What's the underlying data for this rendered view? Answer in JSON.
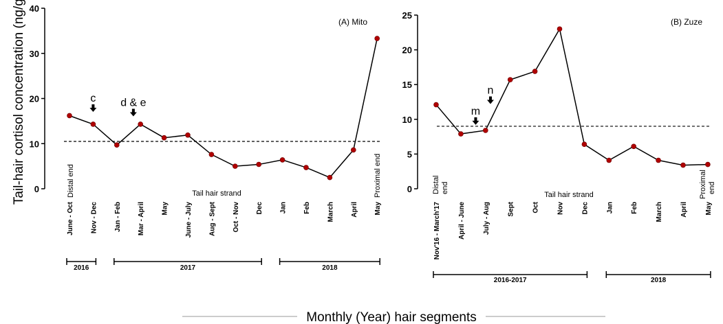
{
  "figure": {
    "ylabel": "Tail-hair cortisol concentration (ng/g)",
    "xlabel": "Monthly (Year) hair segments"
  },
  "chart_data": [
    {
      "type": "line",
      "panel_label": "(A) Mito",
      "categories": [
        "June - Oct",
        "Nov - Dec",
        "Jan - Feb",
        "Mar - April",
        "May",
        "June - July",
        "Aug - Sept",
        "Oct - Nov",
        "Dec",
        "Jan",
        "Feb",
        "March",
        "April",
        "May"
      ],
      "values": [
        16.2,
        14.3,
        9.7,
        14.3,
        11.3,
        11.9,
        7.6,
        5.0,
        5.4,
        6.4,
        4.7,
        2.5,
        8.6,
        33.3
      ],
      "ylim": [
        0,
        40
      ],
      "yticks": [
        0,
        10,
        20,
        30,
        40
      ],
      "reference_line": 10.5,
      "strand_label": "Tail hair strand",
      "end_labels": {
        "distal": "Distal end",
        "proximal": "Proximal end"
      },
      "markers": [
        {
          "text": "c",
          "index": 1,
          "value": 17.5
        },
        {
          "text": "d & e",
          "index": 2.7,
          "value": 16.5
        }
      ],
      "years": [
        {
          "label": "2016",
          "from": 0,
          "to": 1
        },
        {
          "label": "2017",
          "from": 2,
          "to": 8
        },
        {
          "label": "2018",
          "from": 9,
          "to": 13
        }
      ]
    },
    {
      "type": "line",
      "panel_label": "(B) Zuze",
      "categories": [
        "Nov'16 - March'17",
        "April - June",
        "July - Aug",
        "Sept",
        "Oct",
        "Nov",
        "Dec",
        "Jan",
        "Feb",
        "March",
        "April",
        "May"
      ],
      "values": [
        12.1,
        7.9,
        8.4,
        15.7,
        16.9,
        23.0,
        6.4,
        4.1,
        6.1,
        4.1,
        3.4,
        3.5
      ],
      "ylim": [
        0,
        25
      ],
      "yticks": [
        0,
        5,
        10,
        15,
        20,
        25
      ],
      "reference_line": 9.0,
      "strand_label": "Tail hair strand",
      "end_labels": {
        "distal": "Distal end",
        "proximal": "Proximal end"
      },
      "markers": [
        {
          "text": "m",
          "index": 1.6,
          "value": 9.5
        },
        {
          "text": "n",
          "index": 2.2,
          "value": 12.5
        }
      ],
      "years": [
        {
          "label": "2016-2017",
          "from": 0,
          "to": 6
        },
        {
          "label": "2018",
          "from": 7,
          "to": 11
        }
      ]
    }
  ]
}
